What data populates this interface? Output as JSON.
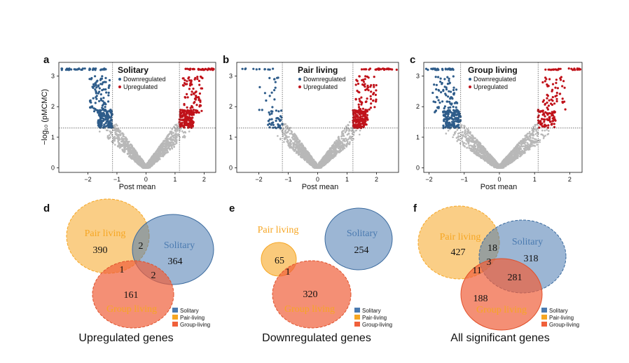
{
  "colors": {
    "down": "#2e5c8a",
    "up": "#c0121a",
    "grey": "#b8b8b8",
    "solitary": "#4a7ab0",
    "pair": "#f6a623",
    "group": "#f0603a"
  },
  "legend_items": [
    "Downregulated",
    "Upregulated"
  ],
  "set_legend": [
    "Solitary",
    "Pair-living",
    "Group-living"
  ],
  "chart_data": [
    {
      "type": "scatter",
      "panel": "a",
      "title": "Solitary",
      "xlabel": "Post mean",
      "ylabel": "−log₁₀ (pMCMC)",
      "xlim": [
        -3.0,
        2.4
      ],
      "ylim": [
        -0.15,
        3.45
      ],
      "xticks": [
        -2,
        -1,
        0,
        1,
        2
      ],
      "yticks": [
        0,
        1,
        2,
        3
      ],
      "threshold_x": [
        -1.15,
        1.15
      ],
      "threshold_y": 1.3,
      "upper_left_x": -2.9,
      "upper_right_x": 2.2,
      "series": [
        {
          "name": "Downregulated",
          "n_points_approx": 364
        },
        {
          "name": "Upregulated",
          "n_points_approx": 390
        }
      ]
    },
    {
      "type": "scatter",
      "panel": "b",
      "title": "Pair living",
      "xlabel": "Post mean",
      "ylabel": "",
      "xlim": [
        -2.75,
        2.75
      ],
      "ylim": [
        -0.15,
        3.45
      ],
      "xticks": [
        -2,
        -1,
        0,
        1,
        2
      ],
      "yticks": [
        0,
        1,
        2,
        3
      ],
      "threshold_x": [
        -1.2,
        1.2
      ],
      "threshold_y": 1.3,
      "upper_left_x": -2.4,
      "upper_right_x": 2.7,
      "series": [
        {
          "name": "Downregulated",
          "n_points_approx": 66
        },
        {
          "name": "Upregulated",
          "n_points_approx": 393
        }
      ]
    },
    {
      "type": "scatter",
      "panel": "c",
      "title": "Group living",
      "xlabel": "Post mean",
      "ylabel": "",
      "xlim": [
        -2.15,
        2.35
      ],
      "ylim": [
        -0.15,
        3.45
      ],
      "xticks": [
        -2,
        -1,
        0,
        1,
        2
      ],
      "yticks": [
        0,
        1,
        2,
        3
      ],
      "threshold_x": [
        -1.1,
        1.1
      ],
      "threshold_y": 1.3,
      "upper_left_x": -2.1,
      "upper_right_x": 2.25,
      "series": [
        {
          "name": "Downregulated",
          "n_points_approx": 320
        },
        {
          "name": "Upregulated",
          "n_points_approx": 164
        }
      ]
    }
  ],
  "venns": [
    {
      "panel": "d",
      "caption": "Upregulated genes",
      "labels": {
        "pair": "Pair living",
        "solitary": "Solitary",
        "group": "Group living"
      },
      "counts": {
        "pair_only": 390,
        "solitary_only": 364,
        "group_only": 161,
        "pair_solitary": 2,
        "pair_group": 1,
        "solitary_group": 2
      }
    },
    {
      "panel": "e",
      "caption": "Downregulated genes",
      "labels": {
        "pair": "Pair living",
        "solitary": "Solitary",
        "group": "Group living"
      },
      "counts": {
        "pair_only": 65,
        "solitary_only": 254,
        "group_only": 320,
        "pair_group": 1
      }
    },
    {
      "panel": "f",
      "caption": "All significant genes",
      "labels": {
        "pair": "Pair living",
        "solitary": "Solitary",
        "group": "Group living"
      },
      "counts": {
        "pair_only": 427,
        "solitary_only": 318,
        "group_only": 188,
        "pair_solitary": 18,
        "pair_group": 11,
        "solitary_group": 281,
        "all_three": 3
      }
    }
  ]
}
